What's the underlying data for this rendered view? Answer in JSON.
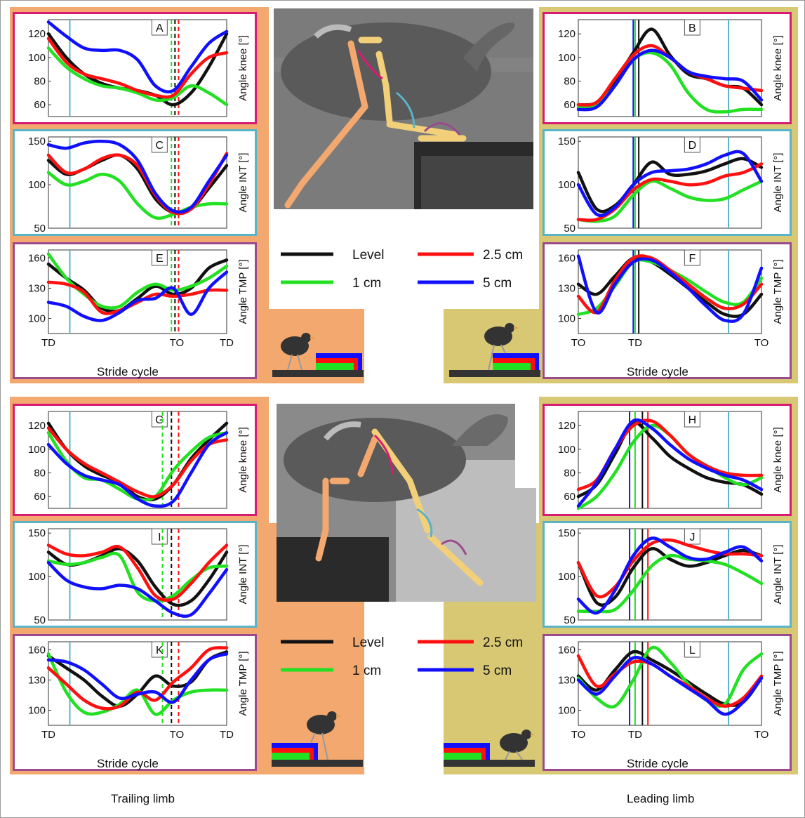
{
  "colors": {
    "level": "#111111",
    "one_cm": "#22e022",
    "two_five_cm": "#ff1010",
    "five_cm": "#1010ff",
    "knee_border": "#d81b73",
    "int_border": "#5ab4c8",
    "tmp_border": "#9b4a8e",
    "trailing_bg": "#f2a86e",
    "leading_bg": "#d8c873"
  },
  "legend": {
    "level": "Level",
    "one_cm": "1 cm",
    "two_five_cm": "2.5 cm",
    "five_cm": "5 cm"
  },
  "footer": {
    "trailing": "Trailing limb",
    "leading": "Leading limb"
  },
  "stride_label": "Stride cycle",
  "chart_data": [
    {
      "panel": "A",
      "type": "line",
      "ylabel": "Angle knee [°]",
      "yticks": [
        60,
        80,
        100,
        120
      ],
      "ylim": [
        50,
        132
      ],
      "x": [
        0,
        0.1,
        0.2,
        0.3,
        0.4,
        0.5,
        0.6,
        0.7,
        0.8,
        0.9,
        1.0
      ],
      "series": [
        {
          "name": "Level",
          "values": [
            120,
            100,
            86,
            78,
            74,
            72,
            68,
            60,
            70,
            92,
            120
          ]
        },
        {
          "name": "1 cm",
          "values": [
            108,
            92,
            82,
            76,
            74,
            70,
            64,
            66,
            76,
            70,
            60
          ]
        },
        {
          "name": "2.5 cm",
          "values": [
            116,
            96,
            86,
            82,
            78,
            72,
            68,
            68,
            86,
            100,
            104
          ]
        },
        {
          "name": "5 cm",
          "values": [
            130,
            118,
            108,
            106,
            106,
            98,
            76,
            72,
            92,
            112,
            122
          ]
        }
      ],
      "xticks": [
        "TD",
        "TO",
        "TD"
      ],
      "vlines": [
        0.12,
        0.69,
        0.71,
        0.73
      ],
      "foot": "Trailing"
    },
    {
      "panel": "C",
      "type": "line",
      "ylabel": "Angle INT [°]",
      "yticks": [
        50,
        100,
        150
      ],
      "ylim": [
        50,
        155
      ],
      "x": [
        0,
        0.1,
        0.2,
        0.3,
        0.4,
        0.5,
        0.6,
        0.7,
        0.8,
        0.9,
        1.0
      ],
      "series": [
        {
          "name": "Level",
          "values": [
            128,
            112,
            118,
            128,
            134,
            118,
            84,
            68,
            72,
            96,
            122
          ]
        },
        {
          "name": "1 cm",
          "values": [
            114,
            100,
            104,
            112,
            104,
            78,
            62,
            66,
            74,
            78,
            78
          ]
        },
        {
          "name": "2.5 cm",
          "values": [
            134,
            114,
            118,
            130,
            134,
            122,
            88,
            68,
            72,
            100,
            136
          ]
        },
        {
          "name": "5 cm",
          "values": [
            146,
            142,
            148,
            150,
            146,
            128,
            90,
            70,
            74,
            104,
            134
          ]
        }
      ],
      "xticks": [
        "TD",
        "TO",
        "TD"
      ],
      "vlines": [
        0.12,
        0.69,
        0.71,
        0.73
      ]
    },
    {
      "panel": "E",
      "type": "line",
      "ylabel": "Angle TMP [°]",
      "yticks": [
        100,
        130,
        160
      ],
      "ylim": [
        85,
        168
      ],
      "x": [
        0,
        0.1,
        0.2,
        0.3,
        0.4,
        0.5,
        0.6,
        0.7,
        0.8,
        0.9,
        1.0
      ],
      "series": [
        {
          "name": "Level",
          "values": [
            154,
            140,
            128,
            110,
            108,
            120,
            132,
            124,
            130,
            150,
            158
          ]
        },
        {
          "name": "1 cm",
          "values": [
            164,
            140,
            124,
            112,
            112,
            126,
            134,
            128,
            132,
            140,
            152
          ]
        },
        {
          "name": "2.5 cm",
          "values": [
            136,
            134,
            126,
            106,
            108,
            116,
            124,
            122,
            124,
            128,
            128
          ]
        },
        {
          "name": "5 cm",
          "values": [
            116,
            112,
            102,
            98,
            106,
            118,
            120,
            130,
            104,
            130,
            146
          ]
        }
      ],
      "xticks": [
        "TD",
        "TO",
        "TD"
      ],
      "vlines": [
        0.12,
        0.69,
        0.71,
        0.73
      ]
    },
    {
      "panel": "B",
      "type": "line",
      "ylabel": "Angle knee [°]",
      "yticks": [
        60,
        80,
        100,
        120
      ],
      "ylim": [
        50,
        132
      ],
      "x": [
        0,
        0.1,
        0.2,
        0.3,
        0.4,
        0.5,
        0.6,
        0.7,
        0.8,
        0.9,
        1.0
      ],
      "series": [
        {
          "name": "Level",
          "values": [
            60,
            62,
            80,
            104,
            124,
            102,
            86,
            82,
            76,
            74,
            60
          ]
        },
        {
          "name": "1 cm",
          "values": [
            58,
            60,
            76,
            98,
            104,
            94,
            70,
            56,
            54,
            56,
            56
          ]
        },
        {
          "name": "2.5 cm",
          "values": [
            60,
            62,
            82,
            102,
            110,
            100,
            88,
            82,
            76,
            74,
            72
          ]
        },
        {
          "name": "5 cm",
          "values": [
            56,
            58,
            76,
            98,
            106,
            100,
            88,
            84,
            82,
            80,
            64
          ]
        }
      ],
      "xticks": [
        "TO",
        "TD",
        "TO"
      ],
      "vlines": [
        0.3,
        0.31,
        0.33,
        0.82
      ]
    },
    {
      "panel": "D",
      "type": "line",
      "ylabel": "Angle INT [°]",
      "yticks": [
        50,
        100,
        150
      ],
      "ylim": [
        50,
        155
      ],
      "x": [
        0,
        0.1,
        0.2,
        0.3,
        0.4,
        0.5,
        0.6,
        0.7,
        0.8,
        0.9,
        1.0
      ],
      "series": [
        {
          "name": "Level",
          "values": [
            114,
            72,
            76,
            100,
            126,
            112,
            112,
            116,
            124,
            130,
            120
          ]
        },
        {
          "name": "1 cm",
          "values": [
            60,
            58,
            64,
            88,
            104,
            96,
            86,
            82,
            84,
            94,
            104
          ]
        },
        {
          "name": "2.5 cm",
          "values": [
            60,
            60,
            72,
            94,
            106,
            104,
            100,
            102,
            110,
            114,
            124
          ]
        },
        {
          "name": "5 cm",
          "values": [
            100,
            66,
            74,
            100,
            114,
            116,
            118,
            124,
            134,
            136,
            104
          ]
        }
      ],
      "xticks": [
        "TO",
        "TD",
        "TO"
      ],
      "vlines": [
        0.3,
        0.31,
        0.33,
        0.82
      ]
    },
    {
      "panel": "F",
      "type": "line",
      "ylabel": "Angle TMP [°]",
      "yticks": [
        100,
        130,
        160
      ],
      "ylim": [
        85,
        168
      ],
      "x": [
        0,
        0.1,
        0.2,
        0.3,
        0.4,
        0.5,
        0.6,
        0.7,
        0.8,
        0.9,
        1.0
      ],
      "series": [
        {
          "name": "Level",
          "values": [
            134,
            124,
            142,
            160,
            156,
            144,
            130,
            116,
            104,
            104,
            124
          ]
        },
        {
          "name": "1 cm",
          "values": [
            104,
            110,
            132,
            156,
            156,
            148,
            138,
            126,
            116,
            116,
            140
          ]
        },
        {
          "name": "2.5 cm",
          "values": [
            122,
            106,
            138,
            160,
            160,
            148,
            134,
            120,
            110,
            114,
            134
          ]
        },
        {
          "name": "5 cm",
          "values": [
            162,
            106,
            134,
            156,
            158,
            146,
            130,
            112,
            98,
            104,
            150
          ]
        }
      ],
      "xticks": [
        "TO",
        "TD",
        "TO"
      ],
      "vlines": [
        0.3,
        0.31,
        0.33,
        0.82
      ]
    },
    {
      "panel": "G",
      "type": "line",
      "ylabel": "Angle knee [°]",
      "yticks": [
        60,
        80,
        100,
        120
      ],
      "ylim": [
        50,
        132
      ],
      "x": [
        0,
        0.1,
        0.2,
        0.3,
        0.4,
        0.5,
        0.6,
        0.7,
        0.8,
        0.9,
        1.0
      ],
      "series": [
        {
          "name": "Level",
          "values": [
            122,
            100,
            86,
            78,
            72,
            60,
            58,
            70,
            92,
            108,
            122
          ]
        },
        {
          "name": "1 cm",
          "values": [
            114,
            90,
            76,
            74,
            66,
            58,
            60,
            82,
            98,
            110,
            114
          ]
        },
        {
          "name": "2.5 cm",
          "values": [
            118,
            100,
            88,
            80,
            72,
            64,
            60,
            70,
            90,
            104,
            108
          ]
        },
        {
          "name": "5 cm",
          "values": [
            104,
            88,
            78,
            74,
            70,
            58,
            52,
            56,
            80,
            104,
            114
          ]
        }
      ],
      "xticks": [
        "TD",
        "TO",
        "TD"
      ],
      "vlines": [
        0.12,
        0.64,
        0.69,
        0.73
      ]
    },
    {
      "panel": "I",
      "type": "line",
      "ylabel": "Angle INT [°]",
      "yticks": [
        50,
        100,
        150
      ],
      "ylim": [
        50,
        155
      ],
      "x": [
        0,
        0.1,
        0.2,
        0.3,
        0.4,
        0.5,
        0.6,
        0.7,
        0.8,
        0.9,
        1.0
      ],
      "series": [
        {
          "name": "Level",
          "values": [
            128,
            114,
            116,
            124,
            132,
            118,
            88,
            68,
            72,
            96,
            128
          ]
        },
        {
          "name": "1 cm",
          "values": [
            118,
            114,
            116,
            122,
            124,
            82,
            72,
            78,
            96,
            110,
            112
          ]
        },
        {
          "name": "2.5 cm",
          "values": [
            136,
            126,
            124,
            128,
            134,
            110,
            78,
            74,
            92,
            116,
            136
          ]
        },
        {
          "name": "5 cm",
          "values": [
            116,
            96,
            88,
            86,
            90,
            86,
            72,
            58,
            56,
            80,
            108
          ]
        }
      ],
      "xticks": [
        "TD",
        "TO",
        "TD"
      ],
      "vlines": [
        0.12,
        0.64,
        0.69,
        0.73
      ]
    },
    {
      "panel": "K",
      "type": "line",
      "ylabel": "Angle TMP [°]",
      "yticks": [
        100,
        130,
        160
      ],
      "ylim": [
        85,
        168
      ],
      "x": [
        0,
        0.1,
        0.2,
        0.3,
        0.4,
        0.5,
        0.6,
        0.7,
        0.8,
        0.9,
        1.0
      ],
      "series": [
        {
          "name": "Level",
          "values": [
            154,
            142,
            130,
            114,
            104,
            116,
            134,
            124,
            128,
            150,
            158
          ]
        },
        {
          "name": "1 cm",
          "values": [
            156,
            118,
            98,
            98,
            106,
            120,
            96,
            110,
            118,
            120,
            120
          ]
        },
        {
          "name": "2.5 cm",
          "values": [
            142,
            126,
            110,
            102,
            104,
            118,
            110,
            128,
            142,
            160,
            162
          ]
        },
        {
          "name": "5 cm",
          "values": [
            150,
            148,
            140,
            126,
            112,
            116,
            118,
            108,
            130,
            150,
            156
          ]
        }
      ],
      "xticks": [
        "TD",
        "TO",
        "TD"
      ],
      "vlines": [
        0.12,
        0.64,
        0.69,
        0.73
      ]
    },
    {
      "panel": "H",
      "type": "line",
      "ylabel": "Angle knee [°]",
      "yticks": [
        60,
        80,
        100,
        120
      ],
      "ylim": [
        50,
        132
      ],
      "x": [
        0,
        0.1,
        0.2,
        0.3,
        0.4,
        0.5,
        0.6,
        0.7,
        0.8,
        0.9,
        1.0
      ],
      "series": [
        {
          "name": "Level",
          "values": [
            60,
            70,
            96,
            122,
            110,
            94,
            84,
            76,
            72,
            70,
            62
          ]
        },
        {
          "name": "1 cm",
          "values": [
            50,
            60,
            80,
            106,
            120,
            112,
            96,
            86,
            76,
            70,
            76
          ]
        },
        {
          "name": "2.5 cm",
          "values": [
            66,
            74,
            100,
            120,
            124,
            112,
            96,
            86,
            80,
            78,
            78
          ]
        },
        {
          "name": "5 cm",
          "values": [
            52,
            72,
            100,
            124,
            118,
            104,
            92,
            84,
            78,
            74,
            66
          ]
        }
      ],
      "xticks": [
        "TO",
        "TD",
        "TO"
      ],
      "vlines": [
        0.28,
        0.31,
        0.35,
        0.38,
        0.82
      ]
    },
    {
      "panel": "J",
      "type": "line",
      "ylabel": "Angle INT [°]",
      "yticks": [
        50,
        100,
        150
      ],
      "ylim": [
        50,
        155
      ],
      "x": [
        0,
        0.1,
        0.2,
        0.3,
        0.4,
        0.5,
        0.6,
        0.7,
        0.8,
        0.9,
        1.0
      ],
      "series": [
        {
          "name": "Level",
          "values": [
            116,
            70,
            76,
            110,
            132,
            120,
            112,
            116,
            124,
            130,
            124
          ]
        },
        {
          "name": "1 cm",
          "values": [
            60,
            60,
            62,
            84,
            112,
            124,
            120,
            118,
            114,
            104,
            92
          ]
        },
        {
          "name": "2.5 cm",
          "values": [
            116,
            78,
            88,
            118,
            138,
            142,
            136,
            130,
            126,
            126,
            124
          ]
        },
        {
          "name": "5 cm",
          "values": [
            74,
            58,
            84,
            124,
            144,
            134,
            122,
            120,
            128,
            134,
            118
          ]
        }
      ],
      "xticks": [
        "TO",
        "TD",
        "TO"
      ],
      "vlines": [
        0.28,
        0.31,
        0.35,
        0.38,
        0.82
      ]
    },
    {
      "panel": "L",
      "type": "line",
      "ylabel": "Angle TMP [°]",
      "yticks": [
        100,
        130,
        160
      ],
      "ylim": [
        85,
        168
      ],
      "x": [
        0,
        0.1,
        0.2,
        0.3,
        0.4,
        0.5,
        0.6,
        0.7,
        0.8,
        0.9,
        1.0
      ],
      "series": [
        {
          "name": "Level",
          "values": [
            134,
            120,
            140,
            158,
            150,
            140,
            128,
            116,
            106,
            108,
            132
          ]
        },
        {
          "name": "1 cm",
          "values": [
            132,
            112,
            104,
            130,
            162,
            148,
            126,
            110,
            106,
            140,
            156
          ]
        },
        {
          "name": "2.5 cm",
          "values": [
            154,
            124,
            136,
            148,
            146,
            134,
            124,
            112,
            104,
            112,
            134
          ]
        },
        {
          "name": "5 cm",
          "values": [
            130,
            116,
            134,
            152,
            146,
            134,
            122,
            110,
            96,
            108,
            132
          ]
        }
      ],
      "xticks": [
        "TO",
        "TD",
        "TO"
      ],
      "vlines": [
        0.28,
        0.31,
        0.35,
        0.38,
        0.82
      ]
    }
  ]
}
